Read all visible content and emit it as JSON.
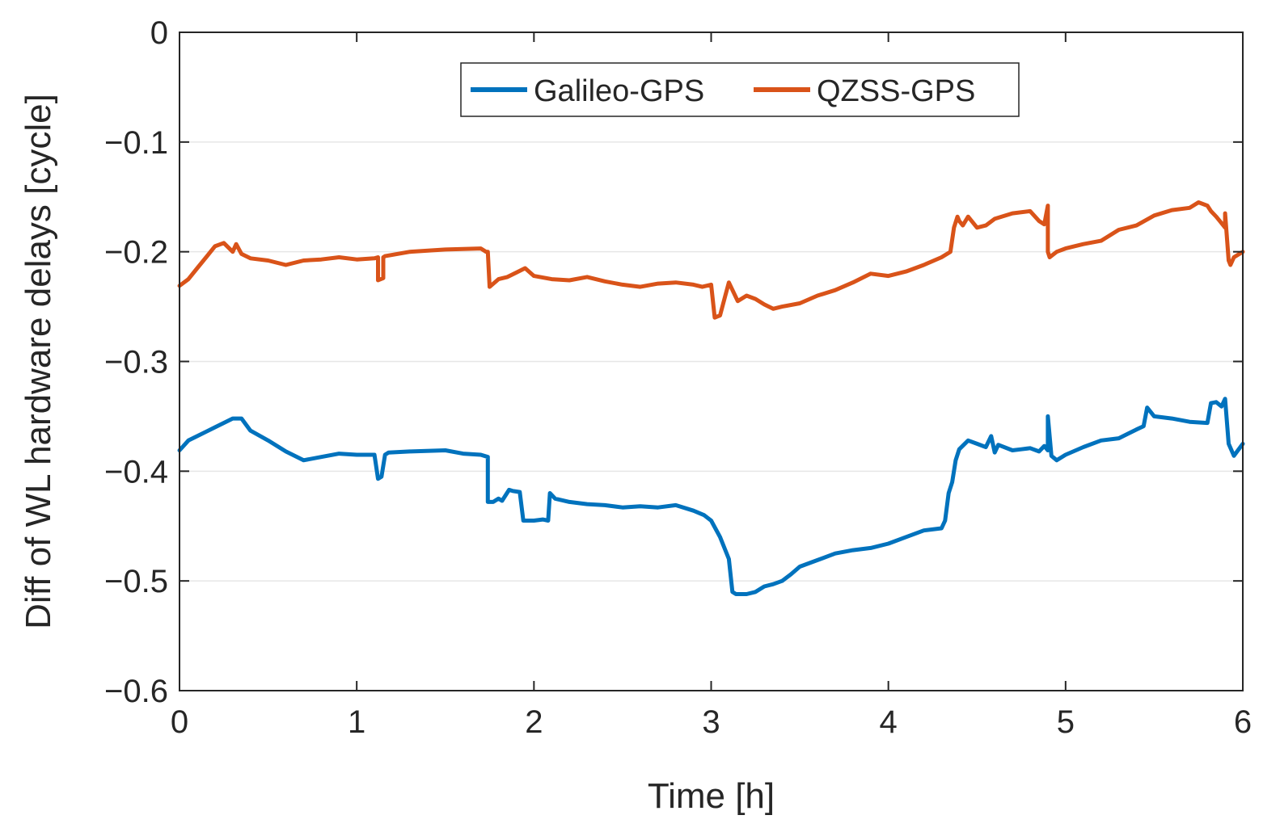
{
  "chart_data": {
    "type": "line",
    "title": "",
    "xlabel": "Time [h]",
    "ylabel": "Diff of WL hardware delays [cycle]",
    "xlim": [
      0,
      6
    ],
    "ylim": [
      -0.6,
      0
    ],
    "xticks": [
      0,
      1,
      2,
      3,
      4,
      5,
      6
    ],
    "xtick_labels": [
      "0",
      "1",
      "2",
      "3",
      "4",
      "5",
      "6"
    ],
    "yticks": [
      0,
      -0.1,
      -0.2,
      -0.3,
      -0.4,
      -0.5,
      -0.6
    ],
    "ytick_labels": [
      "0",
      "−0.1",
      "−0.2",
      "−0.3",
      "−0.4",
      "−0.5",
      "−0.6"
    ],
    "grid": "horizontal",
    "legend_position": "top-center",
    "series": [
      {
        "name": "Galileo-GPS",
        "color": "#0072BD",
        "x": [
          0,
          0.05,
          0.1,
          0.2,
          0.3,
          0.35,
          0.4,
          0.5,
          0.6,
          0.7,
          0.8,
          0.9,
          1.0,
          1.1,
          1.12,
          1.14,
          1.16,
          1.18,
          1.3,
          1.5,
          1.6,
          1.7,
          1.74,
          1.74,
          1.77,
          1.8,
          1.82,
          1.86,
          1.88,
          1.92,
          1.94,
          2.0,
          2.05,
          2.08,
          2.09,
          2.12,
          2.2,
          2.3,
          2.4,
          2.5,
          2.6,
          2.7,
          2.8,
          2.9,
          2.96,
          3.0,
          3.05,
          3.1,
          3.12,
          3.14,
          3.2,
          3.25,
          3.3,
          3.35,
          3.4,
          3.45,
          3.5,
          3.6,
          3.7,
          3.8,
          3.9,
          4.0,
          4.1,
          4.2,
          4.3,
          4.32,
          4.34,
          4.36,
          4.38,
          4.4,
          4.45,
          4.5,
          4.55,
          4.58,
          4.6,
          4.62,
          4.7,
          4.75,
          4.8,
          4.85,
          4.88,
          4.9,
          4.9,
          4.92,
          4.95,
          5.0,
          5.1,
          5.2,
          5.3,
          5.4,
          5.44,
          5.46,
          5.5,
          5.6,
          5.7,
          5.8,
          5.82,
          5.85,
          5.88,
          5.9,
          5.92,
          5.95,
          6.0
        ],
        "y": [
          -0.381,
          -0.372,
          -0.368,
          -0.36,
          -0.352,
          -0.352,
          -0.363,
          -0.372,
          -0.382,
          -0.39,
          -0.387,
          -0.384,
          -0.385,
          -0.385,
          -0.407,
          -0.405,
          -0.385,
          -0.383,
          -0.382,
          -0.381,
          -0.384,
          -0.385,
          -0.387,
          -0.428,
          -0.428,
          -0.425,
          -0.427,
          -0.417,
          -0.418,
          -0.419,
          -0.445,
          -0.445,
          -0.444,
          -0.445,
          -0.42,
          -0.425,
          -0.428,
          -0.43,
          -0.431,
          -0.433,
          -0.432,
          -0.433,
          -0.431,
          -0.436,
          -0.44,
          -0.445,
          -0.46,
          -0.48,
          -0.51,
          -0.512,
          -0.512,
          -0.51,
          -0.505,
          -0.503,
          -0.5,
          -0.494,
          -0.487,
          -0.481,
          -0.475,
          -0.472,
          -0.47,
          -0.466,
          -0.46,
          -0.454,
          -0.452,
          -0.445,
          -0.42,
          -0.41,
          -0.39,
          -0.38,
          -0.372,
          -0.375,
          -0.378,
          -0.368,
          -0.383,
          -0.376,
          -0.381,
          -0.38,
          -0.379,
          -0.382,
          -0.377,
          -0.381,
          -0.35,
          -0.386,
          -0.39,
          -0.385,
          -0.378,
          -0.372,
          -0.37,
          -0.362,
          -0.359,
          -0.342,
          -0.35,
          -0.352,
          -0.355,
          -0.356,
          -0.338,
          -0.337,
          -0.341,
          -0.334,
          -0.375,
          -0.386,
          -0.375
        ]
      },
      {
        "name": "QZSS-GPS",
        "color": "#D95319",
        "x": [
          0,
          0.05,
          0.1,
          0.15,
          0.2,
          0.25,
          0.3,
          0.32,
          0.35,
          0.4,
          0.5,
          0.6,
          0.7,
          0.8,
          0.9,
          1.0,
          1.1,
          1.12,
          1.12,
          1.15,
          1.15,
          1.16,
          1.3,
          1.5,
          1.7,
          1.73,
          1.74,
          1.75,
          1.8,
          1.85,
          1.9,
          1.95,
          2.0,
          2.1,
          2.2,
          2.3,
          2.4,
          2.5,
          2.6,
          2.7,
          2.8,
          2.9,
          2.95,
          3.0,
          3.02,
          3.05,
          3.08,
          3.1,
          3.15,
          3.2,
          3.25,
          3.3,
          3.35,
          3.4,
          3.5,
          3.6,
          3.7,
          3.8,
          3.9,
          4.0,
          4.1,
          4.2,
          4.3,
          4.35,
          4.37,
          4.39,
          4.4,
          4.42,
          4.45,
          4.5,
          4.55,
          4.6,
          4.7,
          4.8,
          4.85,
          4.88,
          4.9,
          4.9,
          4.91,
          4.95,
          5.0,
          5.1,
          5.2,
          5.3,
          5.4,
          5.5,
          5.6,
          5.7,
          5.75,
          5.8,
          5.82,
          5.85,
          5.87,
          5.9,
          5.9,
          5.92,
          5.93,
          5.95,
          6.0
        ],
        "y": [
          -0.231,
          -0.225,
          -0.215,
          -0.205,
          -0.195,
          -0.192,
          -0.2,
          -0.193,
          -0.202,
          -0.206,
          -0.208,
          -0.212,
          -0.208,
          -0.207,
          -0.205,
          -0.207,
          -0.206,
          -0.205,
          -0.226,
          -0.224,
          -0.205,
          -0.204,
          -0.2,
          -0.198,
          -0.197,
          -0.2,
          -0.2,
          -0.232,
          -0.225,
          -0.223,
          -0.219,
          -0.215,
          -0.222,
          -0.225,
          -0.226,
          -0.223,
          -0.227,
          -0.23,
          -0.232,
          -0.229,
          -0.228,
          -0.23,
          -0.232,
          -0.23,
          -0.26,
          -0.258,
          -0.24,
          -0.228,
          -0.245,
          -0.24,
          -0.243,
          -0.248,
          -0.252,
          -0.25,
          -0.247,
          -0.24,
          -0.235,
          -0.228,
          -0.22,
          -0.222,
          -0.218,
          -0.212,
          -0.205,
          -0.2,
          -0.178,
          -0.168,
          -0.172,
          -0.176,
          -0.168,
          -0.178,
          -0.176,
          -0.17,
          -0.165,
          -0.163,
          -0.172,
          -0.175,
          -0.158,
          -0.2,
          -0.205,
          -0.2,
          -0.197,
          -0.193,
          -0.19,
          -0.18,
          -0.176,
          -0.167,
          -0.162,
          -0.16,
          -0.155,
          -0.158,
          -0.163,
          -0.168,
          -0.172,
          -0.178,
          -0.165,
          -0.208,
          -0.212,
          -0.205,
          -0.2
        ]
      }
    ]
  }
}
